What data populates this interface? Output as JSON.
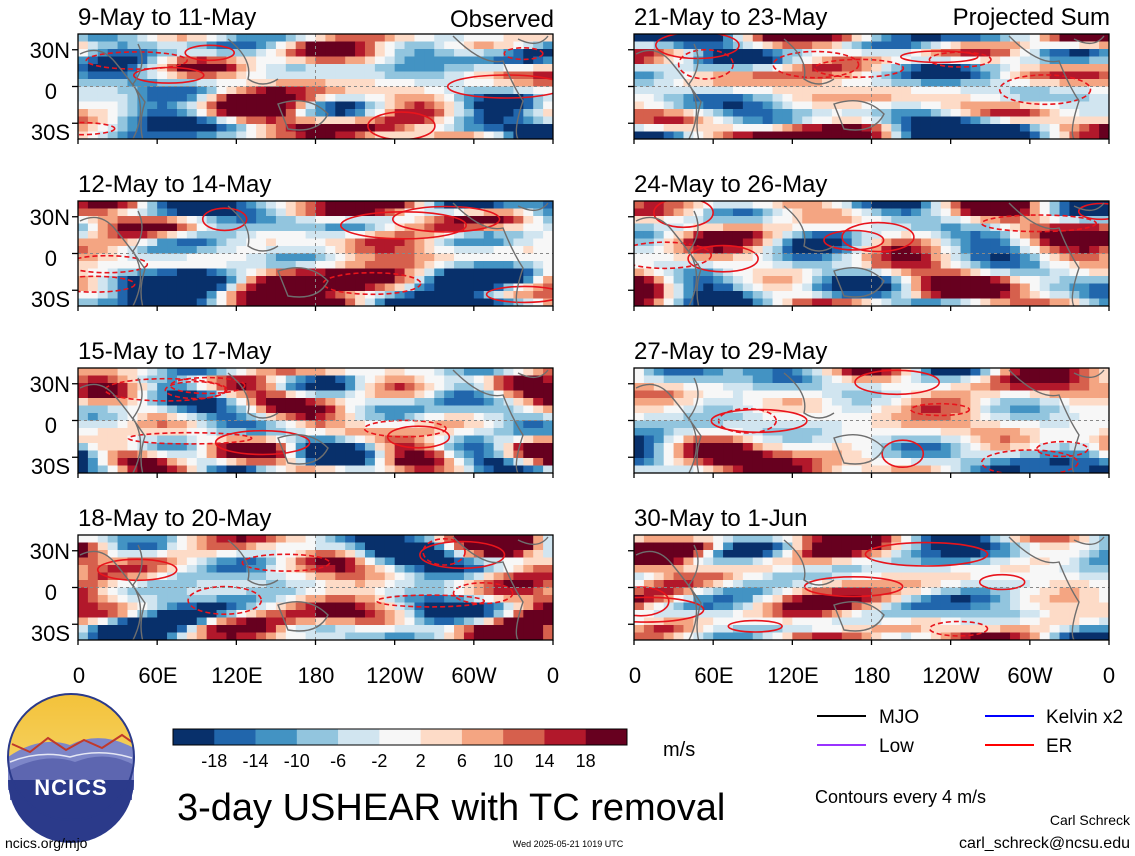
{
  "left_column_label": "Observed",
  "right_column_label": "Projected Sum",
  "panels_left": [
    {
      "title": "9-May to 11-May"
    },
    {
      "title": "12-May to 14-May"
    },
    {
      "title": "15-May to 17-May"
    },
    {
      "title": "18-May to 20-May"
    }
  ],
  "panels_right": [
    {
      "title": "21-May to 23-May"
    },
    {
      "title": "24-May to 26-May"
    },
    {
      "title": "27-May to 29-May"
    },
    {
      "title": "30-May to 1-Jun"
    }
  ],
  "y_ticks": [
    "30N",
    "0",
    "30S"
  ],
  "x_ticks": [
    "0",
    "60E",
    "120E",
    "180",
    "120W",
    "60W",
    "0"
  ],
  "colorbar": {
    "tick_labels": [
      "-18",
      "-14",
      "-10",
      "-6",
      "-2",
      "2",
      "6",
      "10",
      "14",
      "18"
    ],
    "colors": [
      "#08306b",
      "#2166ac",
      "#4393c3",
      "#92c5de",
      "#d1e5f0",
      "#f7f7f7",
      "#fddbc7",
      "#f4a582",
      "#d6604d",
      "#b2182b",
      "#67001f"
    ],
    "unit": "m/s"
  },
  "title": "3-day USHEAR with TC removal",
  "legend": [
    {
      "label": "MJO",
      "color": "#000000"
    },
    {
      "label": "Kelvin x2",
      "color": "#0000ff"
    },
    {
      "label": "Low",
      "color": "#9933ff"
    },
    {
      "label": "ER",
      "color": "#ff0000"
    }
  ],
  "contour_note": "Contours every 4 m/s",
  "author": "Carl Schreck",
  "email": "carl_schreck@ncsu.edu",
  "website": "ncics.org/mjo",
  "timestamp": "Wed 2025-05-21 1019 UTC",
  "logo_text": "NCICS",
  "chart_data": {
    "type": "heatmap",
    "variable": "3-day USHEAR with TC removal",
    "unit": "m/s",
    "x_range": [
      "0",
      "0"
    ],
    "y_range": [
      "30S",
      "30N"
    ],
    "color_levels": [
      -18,
      -14,
      -10,
      -6,
      -2,
      2,
      6,
      10,
      14,
      18
    ],
    "contour_interval": 4,
    "panels": [
      "9-May to 11-May",
      "12-May to 14-May",
      "15-May to 17-May",
      "18-May to 20-May",
      "21-May to 23-May",
      "24-May to 26-May",
      "27-May to 29-May",
      "30-May to 1-Jun"
    ]
  }
}
